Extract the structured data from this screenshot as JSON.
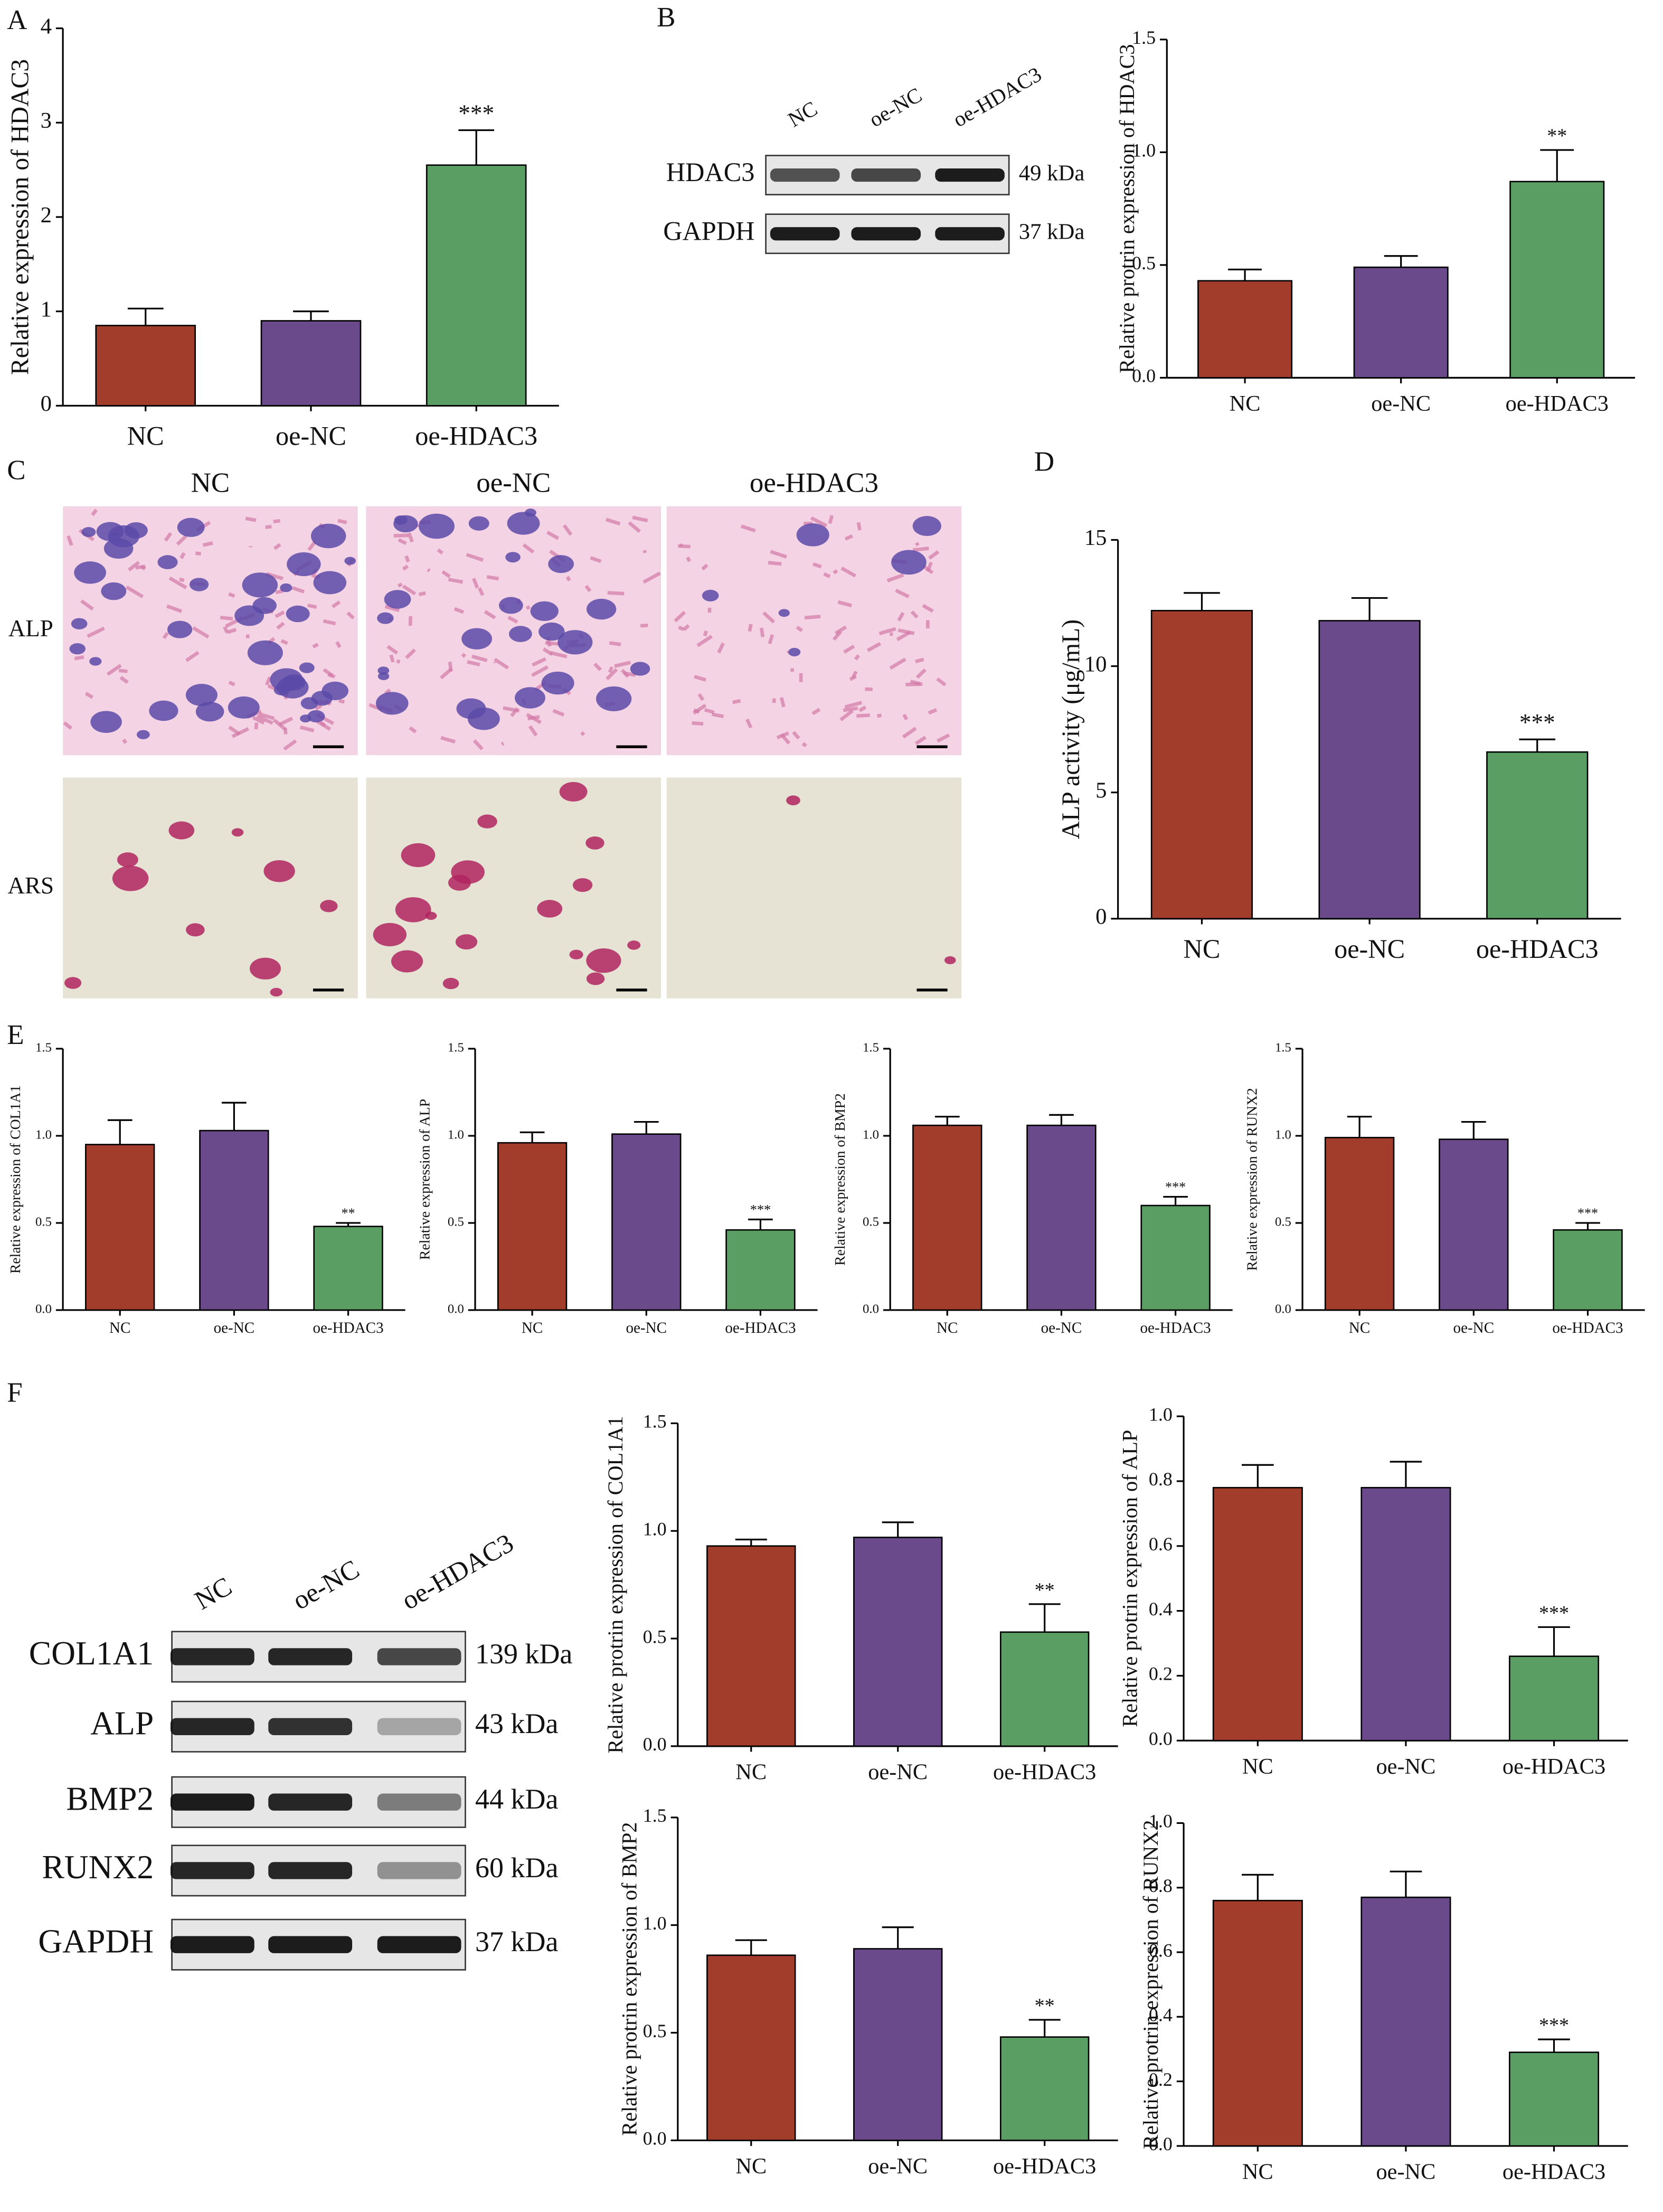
{
  "panel_labels": [
    "A",
    "B",
    "C",
    "D",
    "E",
    "F"
  ],
  "blot_b": {
    "lanes": [
      "NC",
      "oe-NC",
      "oe-HDAC3"
    ],
    "rows": [
      {
        "label": "HDAC3",
        "size": "49 kDa"
      },
      {
        "label": "GAPDH",
        "size": "37 kDa"
      }
    ]
  },
  "staining_c": {
    "columns": [
      "NC",
      "oe-NC",
      "oe-HDAC3"
    ],
    "rows": [
      "ALP",
      "ARS"
    ]
  },
  "blot_f": {
    "lanes": [
      "NC",
      "oe-NC",
      "oe-HDAC3"
    ],
    "rows": [
      {
        "label": "COL1A1",
        "size": "139 kDa"
      },
      {
        "label": "ALP",
        "size": "43 kDa"
      },
      {
        "label": "BMP2",
        "size": "44 kDa"
      },
      {
        "label": "RUNX2",
        "size": "60 kDa"
      },
      {
        "label": "GAPDH",
        "size": "37 kDa"
      }
    ]
  },
  "chart_data": [
    {
      "type": "bar",
      "y_label": "Relative expression of HDAC3",
      "categories": [
        "NC",
        "oe-NC",
        "oe-HDAC3"
      ],
      "values": [
        0.85,
        0.9,
        2.55
      ],
      "errors": [
        0.18,
        0.1,
        0.37
      ],
      "significance": [
        null,
        null,
        "***"
      ],
      "colors": [
        "#a33d2b",
        "#6b4a8c",
        "#5a9e63"
      ],
      "ylim": [
        0,
        4
      ],
      "yticks": [
        0,
        1,
        2,
        3,
        4
      ]
    },
    {
      "type": "bar",
      "y_label": "Relative protrin expression of HDAC3",
      "categories": [
        "NC",
        "oe-NC",
        "oe-HDAC3"
      ],
      "values": [
        0.43,
        0.49,
        0.87
      ],
      "errors": [
        0.05,
        0.05,
        0.14
      ],
      "significance": [
        null,
        null,
        "**"
      ],
      "colors": [
        "#a33d2b",
        "#6b4a8c",
        "#5a9e63"
      ],
      "ylim": [
        0,
        1.5
      ],
      "yticks": [
        {
          "value": 0,
          "label": "0.0"
        },
        0.5,
        {
          "value": 1,
          "label": "1.0"
        },
        1.5
      ]
    },
    {
      "type": "bar",
      "y_label": "ALP activity (μg/mL)",
      "categories": [
        "NC",
        "oe-NC",
        "oe-HDAC3"
      ],
      "values": [
        12.2,
        11.8,
        6.6
      ],
      "errors": [
        0.7,
        0.9,
        0.5
      ],
      "significance": [
        null,
        null,
        "***"
      ],
      "colors": [
        "#a33d2b",
        "#6b4a8c",
        "#5a9e63"
      ],
      "ylim": [
        0,
        15
      ],
      "yticks": [
        0,
        5,
        10,
        15
      ]
    },
    {
      "type": "bar",
      "y_label": "Relative expression of COL1A1",
      "categories": [
        "NC",
        "oe-NC",
        "oe-HDAC3"
      ],
      "values": [
        0.95,
        1.03,
        0.48
      ],
      "errors": [
        0.14,
        0.16,
        0.02
      ],
      "significance": [
        null,
        null,
        "**"
      ],
      "colors": [
        "#a33d2b",
        "#6b4a8c",
        "#5a9e63"
      ],
      "ylim": [
        0,
        1.5
      ],
      "yticks": [
        {
          "value": 0,
          "label": "0.0"
        },
        0.5,
        {
          "value": 1,
          "label": "1.0"
        },
        1.5
      ]
    },
    {
      "type": "bar",
      "y_label": "Relative expression of ALP",
      "categories": [
        "NC",
        "oe-NC",
        "oe-HDAC3"
      ],
      "values": [
        0.96,
        1.01,
        0.46
      ],
      "errors": [
        0.06,
        0.07,
        0.06
      ],
      "significance": [
        null,
        null,
        "***"
      ],
      "colors": [
        "#a33d2b",
        "#6b4a8c",
        "#5a9e63"
      ],
      "ylim": [
        0,
        1.5
      ],
      "yticks": [
        {
          "value": 0,
          "label": "0.0"
        },
        0.5,
        {
          "value": 1,
          "label": "1.0"
        },
        1.5
      ]
    },
    {
      "type": "bar",
      "y_label": "Relative expression of BMP2",
      "categories": [
        "NC",
        "oe-NC",
        "oe-HDAC3"
      ],
      "values": [
        1.06,
        1.06,
        0.6
      ],
      "errors": [
        0.05,
        0.06,
        0.05
      ],
      "significance": [
        null,
        null,
        "***"
      ],
      "colors": [
        "#a33d2b",
        "#6b4a8c",
        "#5a9e63"
      ],
      "ylim": [
        0,
        1.5
      ],
      "yticks": [
        {
          "value": 0,
          "label": "0.0"
        },
        0.5,
        {
          "value": 1,
          "label": "1.0"
        },
        1.5
      ]
    },
    {
      "type": "bar",
      "y_label": "Relative expression of RUNX2",
      "categories": [
        "NC",
        "oe-NC",
        "oe-HDAC3"
      ],
      "values": [
        0.99,
        0.98,
        0.46
      ],
      "errors": [
        0.12,
        0.1,
        0.04
      ],
      "significance": [
        null,
        null,
        "***"
      ],
      "colors": [
        "#a33d2b",
        "#6b4a8c",
        "#5a9e63"
      ],
      "ylim": [
        0,
        1.5
      ],
      "yticks": [
        {
          "value": 0,
          "label": "0.0"
        },
        0.5,
        {
          "value": 1,
          "label": "1.0"
        },
        1.5
      ]
    },
    {
      "type": "bar",
      "y_label": "Relative protrin expression of COL1A1",
      "categories": [
        "NC",
        "oe-NC",
        "oe-HDAC3"
      ],
      "values": [
        0.93,
        0.97,
        0.53
      ],
      "errors": [
        0.03,
        0.07,
        0.13
      ],
      "significance": [
        null,
        null,
        "**"
      ],
      "colors": [
        "#a33d2b",
        "#6b4a8c",
        "#5a9e63"
      ],
      "ylim": [
        0,
        1.5
      ],
      "yticks": [
        {
          "value": 0,
          "label": "0.0"
        },
        0.5,
        {
          "value": 1,
          "label": "1.0"
        },
        1.5
      ]
    },
    {
      "type": "bar",
      "y_label": "Relative protrin expression of ALP",
      "categories": [
        "NC",
        "oe-NC",
        "oe-HDAC3"
      ],
      "values": [
        0.78,
        0.78,
        0.26
      ],
      "errors": [
        0.07,
        0.08,
        0.09
      ],
      "significance": [
        null,
        null,
        "***"
      ],
      "colors": [
        "#a33d2b",
        "#6b4a8c",
        "#5a9e63"
      ],
      "ylim": [
        0,
        1
      ],
      "yticks": [
        {
          "value": 0,
          "label": "0.0"
        },
        0.2,
        0.4,
        0.6,
        0.8,
        {
          "value": 1,
          "label": "1.0"
        }
      ]
    },
    {
      "type": "bar",
      "y_label": "Relative protrin expression of BMP2",
      "categories": [
        "NC",
        "oe-NC",
        "oe-HDAC3"
      ],
      "values": [
        0.86,
        0.89,
        0.48
      ],
      "errors": [
        0.07,
        0.1,
        0.08
      ],
      "significance": [
        null,
        null,
        "**"
      ],
      "colors": [
        "#a33d2b",
        "#6b4a8c",
        "#5a9e63"
      ],
      "ylim": [
        0,
        1.5
      ],
      "yticks": [
        {
          "value": 0,
          "label": "0.0"
        },
        0.5,
        {
          "value": 1,
          "label": "1.0"
        },
        1.5
      ]
    },
    {
      "type": "bar",
      "y_label": "Relative protrin expression of RUNX2",
      "categories": [
        "NC",
        "oe-NC",
        "oe-HDAC3"
      ],
      "values": [
        0.76,
        0.77,
        0.29
      ],
      "errors": [
        0.08,
        0.08,
        0.04
      ],
      "significance": [
        null,
        null,
        "***"
      ],
      "colors": [
        "#a33d2b",
        "#6b4a8c",
        "#5a9e63"
      ],
      "ylim": [
        0,
        1
      ],
      "yticks": [
        {
          "value": 0,
          "label": "0.0"
        },
        0.2,
        0.4,
        0.6,
        0.8,
        {
          "value": 1,
          "label": "1.0"
        }
      ]
    }
  ]
}
